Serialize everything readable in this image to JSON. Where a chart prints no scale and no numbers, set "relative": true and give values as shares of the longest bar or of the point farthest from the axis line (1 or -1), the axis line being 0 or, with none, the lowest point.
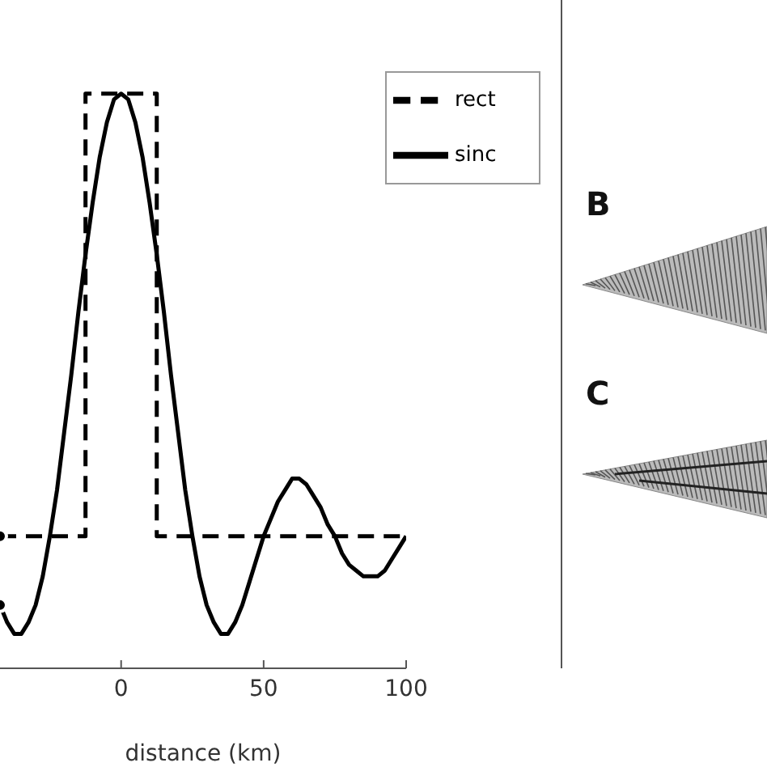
{
  "chart_data": {
    "type": "line",
    "relative": true,
    "xlabel": "distance (km)",
    "xlim": [
      -42.5,
      100
    ],
    "xticks": [
      0,
      50,
      100
    ],
    "legend": "top right",
    "annotations": [
      "B",
      "C"
    ],
    "series": [
      {
        "name": "sinc",
        "color": "#000000",
        "line_style": "solid",
        "x": [
          -42.5,
          -40,
          -37.5,
          -35,
          -32.5,
          -30,
          -27.5,
          -25,
          -22.5,
          -20,
          -17.5,
          -15,
          -12.5,
          -10,
          -7.5,
          -5,
          -2.5,
          0,
          2.5,
          5,
          7.5,
          10,
          12.5,
          15,
          17.5,
          20,
          22.5,
          25,
          27.5,
          30,
          32.5,
          35,
          37.5,
          40,
          42.5,
          45,
          47.5,
          50,
          52.5,
          55,
          57.5,
          60,
          62.5,
          65,
          67.5,
          70,
          72.5,
          75,
          77.5,
          80,
          82.5,
          85,
          87.5,
          90,
          92.5,
          95,
          97.5,
          100
        ],
        "values": [
          0.11,
          0.08,
          0.06,
          0.06,
          0.08,
          0.11,
          0.16,
          0.23,
          0.31,
          0.41,
          0.51,
          0.62,
          0.72,
          0.81,
          0.89,
          0.95,
          0.99,
          1,
          0.99,
          0.95,
          0.89,
          0.81,
          0.72,
          0.62,
          0.51,
          0.41,
          0.31,
          0.23,
          0.16,
          0.11,
          0.08,
          0.06,
          0.06,
          0.08,
          0.11,
          0.15,
          0.19,
          0.23,
          0.26,
          0.29,
          0.31,
          0.33,
          0.33,
          0.32,
          0.3,
          0.28,
          0.25,
          0.23,
          0.2,
          0.18,
          0.17,
          0.16,
          0.16,
          0.16,
          0.17,
          0.19,
          0.21,
          0.23
        ]
      },
      {
        "name": "rect",
        "color": "#000000",
        "line_style": "dashed",
        "x": [
          -42.5,
          -12.5,
          -12.5,
          12.5,
          12.5,
          100
        ],
        "values": [
          0.23,
          0.23,
          1,
          1,
          0.23,
          0.23
        ]
      }
    ]
  }
}
